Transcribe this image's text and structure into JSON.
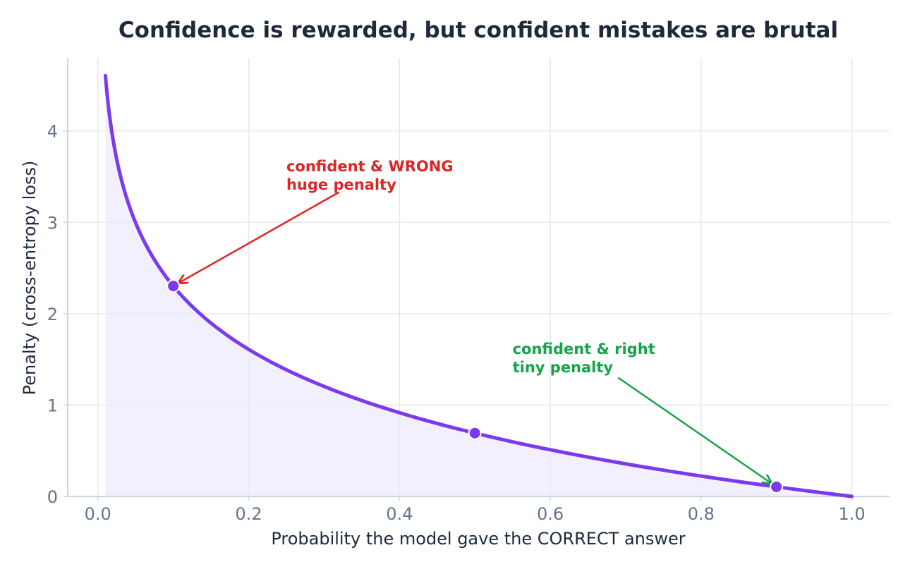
{
  "chart_data": {
    "type": "line",
    "title": "Confidence is rewarded, but confident mistakes are brutal",
    "xlabel": "Probability the model gave the CORRECT answer",
    "ylabel": "Penalty  (cross-entropy loss)",
    "xlim": [
      -0.04,
      1.05
    ],
    "ylim": [
      0,
      4.8
    ],
    "xticks": [
      0.0,
      0.2,
      0.4,
      0.6,
      0.8,
      1.0
    ],
    "xtick_labels": [
      "0.0",
      "0.2",
      "0.4",
      "0.6",
      "0.8",
      "1.0"
    ],
    "yticks": [
      0,
      1,
      2,
      3,
      4
    ],
    "ytick_labels": [
      "0",
      "1",
      "2",
      "3",
      "4"
    ],
    "grid": true,
    "series": [
      {
        "function": "-ln(p)",
        "x_range": [
          0.01,
          1.0
        ],
        "color": "#7c3aed",
        "fill": "#ede9fe"
      }
    ],
    "highlighted_points": [
      {
        "x": 0.1,
        "y": 2.303
      },
      {
        "x": 0.5,
        "y": 0.693
      },
      {
        "x": 0.9,
        "y": 0.105
      }
    ],
    "annotations": [
      {
        "lines": [
          "confident & WRONG",
          "huge penalty"
        ],
        "color": "#dc2626",
        "text_x": 0.25,
        "text_y": 3.62,
        "arrow_from_x": 0.32,
        "arrow_from_y": 3.33,
        "point_x": 0.1,
        "point_y": 2.303
      },
      {
        "lines": [
          "confident & right",
          "tiny penalty"
        ],
        "color": "#16a34a",
        "text_x": 0.55,
        "text_y": 1.62,
        "arrow_from_x": 0.69,
        "arrow_from_y": 1.3,
        "point_x": 0.9,
        "point_y": 0.105
      }
    ],
    "colors": {
      "curve": "#7c3aed",
      "fill": "#ede9fe",
      "grid": "#e5e7eb",
      "axis": "#cbd5e1",
      "wrong": "#dc2626",
      "right": "#16a34a"
    }
  }
}
